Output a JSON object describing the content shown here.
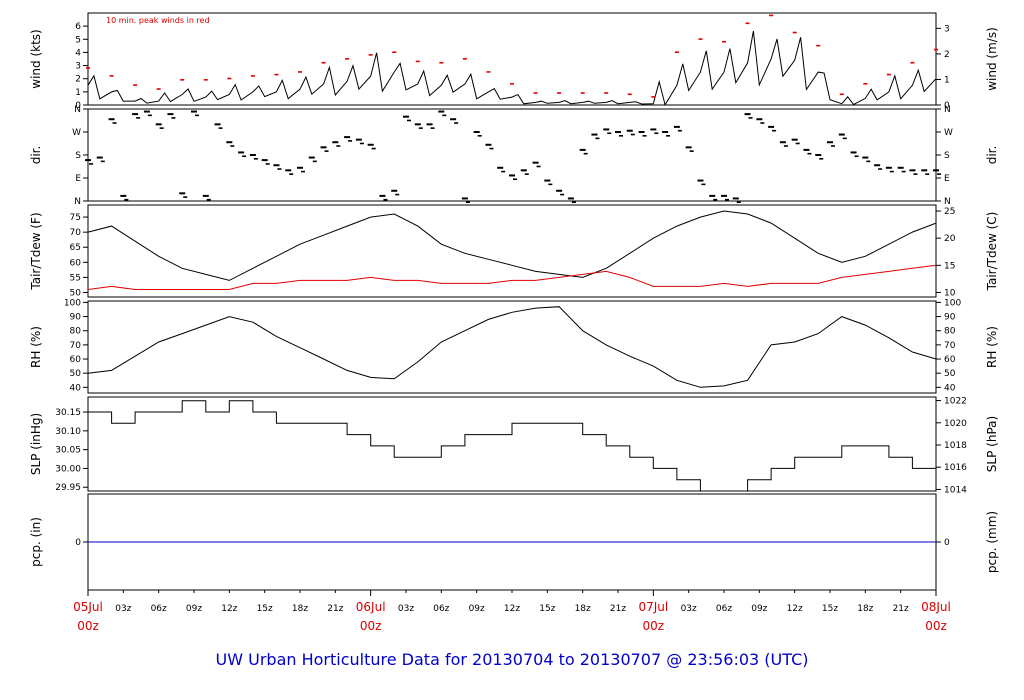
{
  "caption": "UW Urban Horticulture Data for 20130704  to  20130707 @ 23:56:03  (UTC)",
  "colors": {
    "primary": "#000000",
    "accent": "#e00000",
    "rain": "#0000cc",
    "day_label": "#dd0000",
    "caption": "#0000cc"
  },
  "chart_data": [
    {
      "type": "line",
      "id": "wind",
      "ylabel": "wind (kts)",
      "ylabel_right": "wind (m/s)",
      "annotation": "10 min. peak winds in red",
      "ylim": [
        0,
        7
      ],
      "yticks": [
        0,
        1,
        2,
        3,
        4,
        5,
        6
      ],
      "right_ticks": [
        {
          "label": "0",
          "at": 0
        },
        {
          "label": "1",
          "at": 1.944
        },
        {
          "label": "2",
          "at": 3.888
        },
        {
          "label": "3",
          "at": 5.832
        }
      ],
      "x": [
        0,
        2,
        4,
        6,
        8,
        10,
        12,
        14,
        16,
        18,
        20,
        22,
        24,
        26,
        28,
        30,
        32,
        34,
        36,
        38,
        40,
        42,
        44,
        46,
        48,
        50,
        52,
        54,
        56,
        58,
        60,
        62,
        64,
        66,
        68,
        70,
        72
      ],
      "series": [
        {
          "values": [
            1.5,
            1.0,
            0.3,
            0.3,
            0.8,
            0.6,
            0.8,
            1.0,
            1.0,
            1.2,
            1.6,
            1.8,
            2.2,
            2.5,
            1.6,
            1.5,
            1.6,
            1.0,
            0.6,
            0.2,
            0.2,
            0.2,
            0.2,
            0.2,
            0.1,
            1.5,
            2.5,
            2.5,
            3.2,
            3.5,
            3.4,
            2.5,
            0.1,
            0.5,
            1.0,
            1.5,
            2.0
          ]
        },
        {
          "name": "10 min. peak winds in red",
          "values": [
            2.8,
            2.2,
            1.5,
            1.2,
            1.9,
            1.9,
            2.0,
            2.2,
            2.3,
            2.5,
            3.2,
            3.5,
            3.8,
            4.0,
            3.3,
            3.2,
            3.5,
            2.5,
            1.6,
            0.9,
            0.9,
            0.9,
            0.9,
            0.8,
            0.6,
            4.0,
            5.0,
            4.8,
            6.2,
            6.8,
            5.5,
            4.5,
            0.8,
            1.6,
            2.3,
            3.2,
            4.2
          ]
        }
      ]
    },
    {
      "type": "scatter",
      "id": "dir",
      "ylabel": "dir.",
      "ylabel_right": "dir.",
      "ylim": [
        0,
        360
      ],
      "ytick_labels": [
        {
          "label": "N",
          "at": 0
        },
        {
          "label": "E",
          "at": 90
        },
        {
          "label": "S",
          "at": 180
        },
        {
          "label": "W",
          "at": 270
        },
        {
          "label": "N",
          "at": 360
        }
      ],
      "x": [
        0,
        1,
        2,
        3,
        4,
        5,
        6,
        7,
        8,
        9,
        10,
        11,
        12,
        13,
        14,
        15,
        16,
        17,
        18,
        19,
        20,
        21,
        22,
        23,
        24,
        25,
        26,
        27,
        28,
        29,
        30,
        31,
        32,
        33,
        34,
        35,
        36,
        37,
        38,
        39,
        40,
        41,
        42,
        43,
        44,
        45,
        46,
        47,
        48,
        49,
        50,
        51,
        52,
        53,
        54,
        55,
        56,
        57,
        58,
        59,
        60,
        61,
        62,
        63,
        64,
        65,
        66,
        67,
        68,
        69,
        70,
        71,
        72
      ],
      "series": [
        {
          "values": [
            160,
            170,
            320,
            20,
            340,
            350,
            300,
            340,
            30,
            350,
            20,
            300,
            230,
            190,
            180,
            160,
            140,
            120,
            130,
            170,
            210,
            230,
            250,
            240,
            220,
            20,
            40,
            330,
            300,
            300,
            350,
            320,
            10,
            270,
            220,
            130,
            100,
            120,
            150,
            80,
            40,
            10,
            200,
            260,
            280,
            270,
            275,
            270,
            280,
            270,
            290,
            210,
            80,
            20,
            20,
            10,
            340,
            320,
            290,
            230,
            240,
            200,
            180,
            230,
            260,
            190,
            170,
            140,
            130,
            130,
            120,
            120,
            120
          ]
        }
      ]
    },
    {
      "type": "line",
      "id": "temp",
      "ylabel": "Tair/Tdew (F)",
      "ylabel_right": "Tair/Tdew (C)",
      "ylim": [
        48.5,
        79
      ],
      "yticks": [
        50,
        55,
        60,
        65,
        70,
        75
      ],
      "right_ticks": [
        {
          "label": "10",
          "at": 50
        },
        {
          "label": "15",
          "at": 59
        },
        {
          "label": "20",
          "at": 68
        },
        {
          "label": "25",
          "at": 77
        }
      ],
      "x": [
        0,
        2,
        4,
        6,
        8,
        10,
        12,
        14,
        16,
        18,
        20,
        22,
        24,
        26,
        28,
        30,
        32,
        34,
        36,
        38,
        40,
        42,
        44,
        46,
        48,
        50,
        52,
        54,
        56,
        58,
        60,
        62,
        64,
        66,
        68,
        70,
        72
      ],
      "series": [
        {
          "name": "Tair",
          "values": [
            70,
            72,
            67,
            62,
            58,
            56,
            54,
            58,
            62,
            66,
            69,
            72,
            75,
            76,
            72,
            66,
            63,
            61,
            59,
            57,
            56,
            55,
            58,
            63,
            68,
            72,
            75,
            77,
            76,
            73,
            68,
            63,
            60,
            62,
            66,
            70,
            73
          ]
        },
        {
          "name": "Tdew",
          "values": [
            51,
            52,
            51,
            51,
            51,
            51,
            51,
            53,
            53,
            54,
            54,
            54,
            55,
            54,
            54,
            53,
            53,
            53,
            54,
            54,
            55,
            56,
            57,
            55,
            52,
            52,
            52,
            53,
            52,
            53,
            53,
            53,
            55,
            56,
            57,
            58,
            59
          ]
        }
      ]
    },
    {
      "type": "line",
      "id": "rh",
      "ylabel": "RH (%)",
      "ylabel_right": "RH (%)",
      "ylim": [
        36,
        101
      ],
      "yticks": [
        40,
        50,
        60,
        70,
        80,
        90,
        100
      ],
      "x": [
        0,
        2,
        4,
        6,
        8,
        10,
        12,
        14,
        16,
        18,
        20,
        22,
        24,
        26,
        28,
        30,
        32,
        34,
        36,
        38,
        40,
        42,
        44,
        46,
        48,
        50,
        52,
        54,
        56,
        58,
        60,
        62,
        64,
        66,
        68,
        70,
        72
      ],
      "series": [
        {
          "values": [
            50,
            52,
            62,
            72,
            78,
            84,
            90,
            86,
            76,
            68,
            60,
            52,
            47,
            46,
            58,
            72,
            80,
            88,
            93,
            96,
            97,
            80,
            70,
            62,
            55,
            45,
            40,
            41,
            45,
            70,
            72,
            78,
            90,
            84,
            75,
            65,
            60
          ]
        }
      ]
    },
    {
      "type": "line",
      "id": "slp",
      "ylabel": "SLP (inHg)",
      "ylabel_right": "SLP (hPa)",
      "ylim": [
        29.94,
        30.19
      ],
      "yticks": [
        29.95,
        30.0,
        30.05,
        30.1,
        30.15
      ],
      "right_ticks": [
        {
          "label": "1014",
          "at": 29.9442
        },
        {
          "label": "1016",
          "at": 30.0033
        },
        {
          "label": "1018",
          "at": 30.0623
        },
        {
          "label": "1020",
          "at": 30.1214
        },
        {
          "label": "1022",
          "at": 30.1805
        }
      ],
      "x": [
        0,
        2,
        4,
        6,
        8,
        10,
        12,
        14,
        16,
        18,
        20,
        22,
        24,
        26,
        28,
        30,
        32,
        34,
        36,
        38,
        40,
        42,
        44,
        46,
        48,
        50,
        52,
        54,
        56,
        58,
        60,
        62,
        64,
        66,
        68,
        70,
        72
      ],
      "series": [
        {
          "values": [
            30.15,
            30.12,
            30.15,
            30.15,
            30.18,
            30.15,
            30.18,
            30.15,
            30.12,
            30.12,
            30.12,
            30.09,
            30.06,
            30.03,
            30.03,
            30.06,
            30.09,
            30.09,
            30.12,
            30.12,
            30.12,
            30.09,
            30.06,
            30.03,
            30.0,
            29.97,
            29.94,
            29.94,
            29.97,
            30.0,
            30.03,
            30.03,
            30.06,
            30.06,
            30.03,
            30.0,
            29.97
          ]
        }
      ]
    },
    {
      "type": "line",
      "id": "pcp",
      "ylabel": "pcp. (in)",
      "ylabel_right": "pcp. (mm)",
      "ylim": [
        -1,
        1
      ],
      "yticks": [
        0
      ],
      "right_ticks": [
        {
          "label": "0",
          "at": 0
        }
      ],
      "x": [
        0,
        72
      ],
      "series": [
        {
          "values": [
            0,
            0
          ]
        }
      ]
    }
  ],
  "x_axis": {
    "ticks": [
      {
        "label": "05Jul",
        "sub": "00z",
        "day": true
      },
      {
        "label": "03z"
      },
      {
        "label": "06z"
      },
      {
        "label": "09z"
      },
      {
        "label": "12z"
      },
      {
        "label": "15z"
      },
      {
        "label": "18z"
      },
      {
        "label": "21z"
      },
      {
        "label": "06Jul",
        "sub": "00z",
        "day": true
      },
      {
        "label": "03z"
      },
      {
        "label": "06z"
      },
      {
        "label": "09z"
      },
      {
        "label": "12z"
      },
      {
        "label": "15z"
      },
      {
        "label": "18z"
      },
      {
        "label": "21z"
      },
      {
        "label": "07Jul",
        "sub": "00z",
        "day": true
      },
      {
        "label": "03z"
      },
      {
        "label": "06z"
      },
      {
        "label": "09z"
      },
      {
        "label": "12z"
      },
      {
        "label": "15z"
      },
      {
        "label": "18z"
      },
      {
        "label": "21z"
      },
      {
        "label": "08Jul",
        "sub": "00z",
        "day": true
      }
    ]
  }
}
